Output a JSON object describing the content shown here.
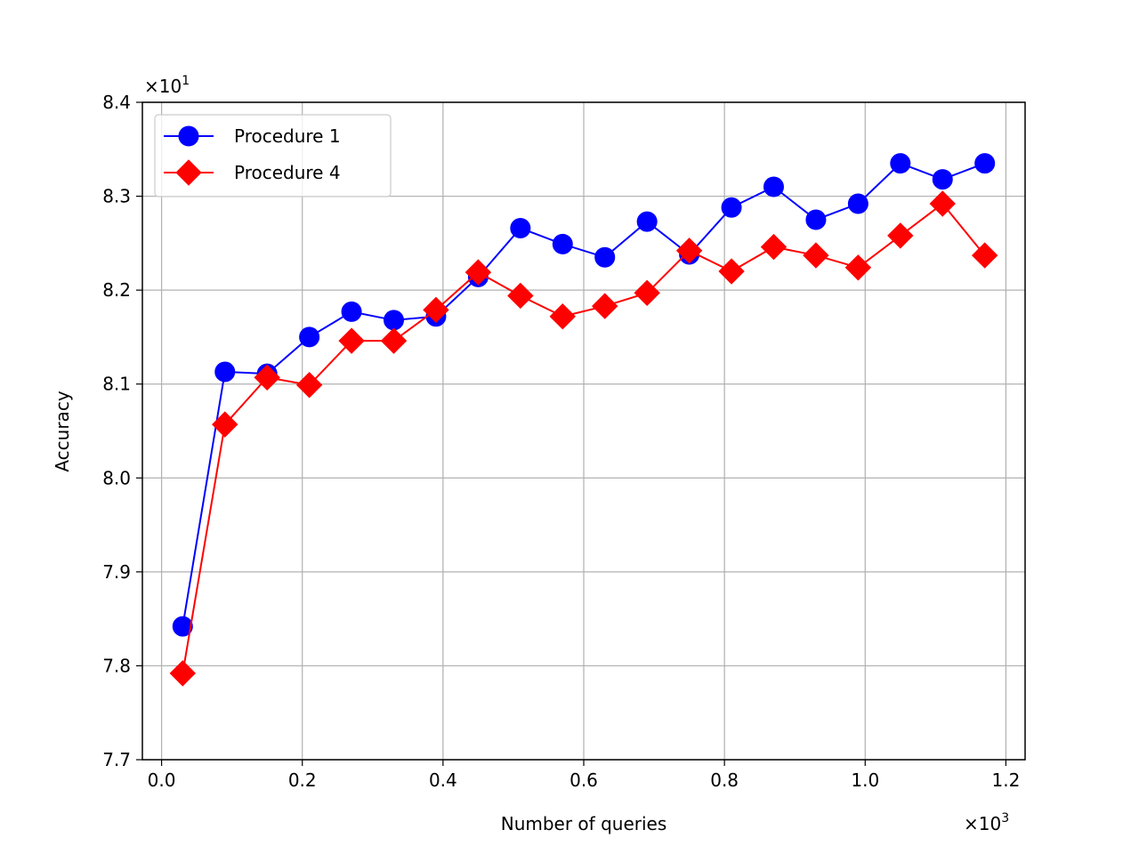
{
  "chart_data": {
    "type": "line",
    "xlabel": "Number of queries",
    "ylabel": "Accuracy",
    "x_offset_label": "×10",
    "x_offset_exp": "3",
    "y_offset_label": "×10",
    "y_offset_exp": "1",
    "xlim": [
      -0.0273,
      1.2273
    ],
    "ylim": [
      7.7,
      8.4
    ],
    "x_ticks": [
      0.0,
      0.2,
      0.4,
      0.6,
      0.8,
      1.0,
      1.2
    ],
    "x_tick_labels": [
      "0.0",
      "0.2",
      "0.4",
      "0.6",
      "0.8",
      "1.0",
      "1.2"
    ],
    "y_ticks": [
      7.7,
      7.8,
      7.9,
      8.0,
      8.1,
      8.2,
      8.3,
      8.4
    ],
    "y_tick_labels": [
      "7.7",
      "7.8",
      "7.9",
      "8.0",
      "8.1",
      "8.2",
      "8.3",
      "8.4"
    ],
    "grid": true,
    "legend_position": "top-left",
    "x": [
      0.03,
      0.09,
      0.15,
      0.21,
      0.27,
      0.33,
      0.39,
      0.45,
      0.51,
      0.57,
      0.63,
      0.69,
      0.75,
      0.81,
      0.87,
      0.93,
      0.99,
      1.05,
      1.11,
      1.17
    ],
    "series": [
      {
        "name": "Procedure 1",
        "color": "#0000ff",
        "marker": "circle",
        "values": [
          7.842,
          8.113,
          8.111,
          8.15,
          8.177,
          8.168,
          8.172,
          8.214,
          8.266,
          8.249,
          8.235,
          8.273,
          8.238,
          8.288,
          8.31,
          8.275,
          8.292,
          8.335,
          8.318,
          8.335
        ]
      },
      {
        "name": "Procedure 4",
        "color": "#ff0000",
        "marker": "diamond",
        "values": [
          7.792,
          8.057,
          8.107,
          8.099,
          8.146,
          8.146,
          8.179,
          8.219,
          8.194,
          8.172,
          8.183,
          8.197,
          8.242,
          8.22,
          8.246,
          8.237,
          8.224,
          8.258,
          8.292,
          8.237
        ]
      }
    ]
  }
}
